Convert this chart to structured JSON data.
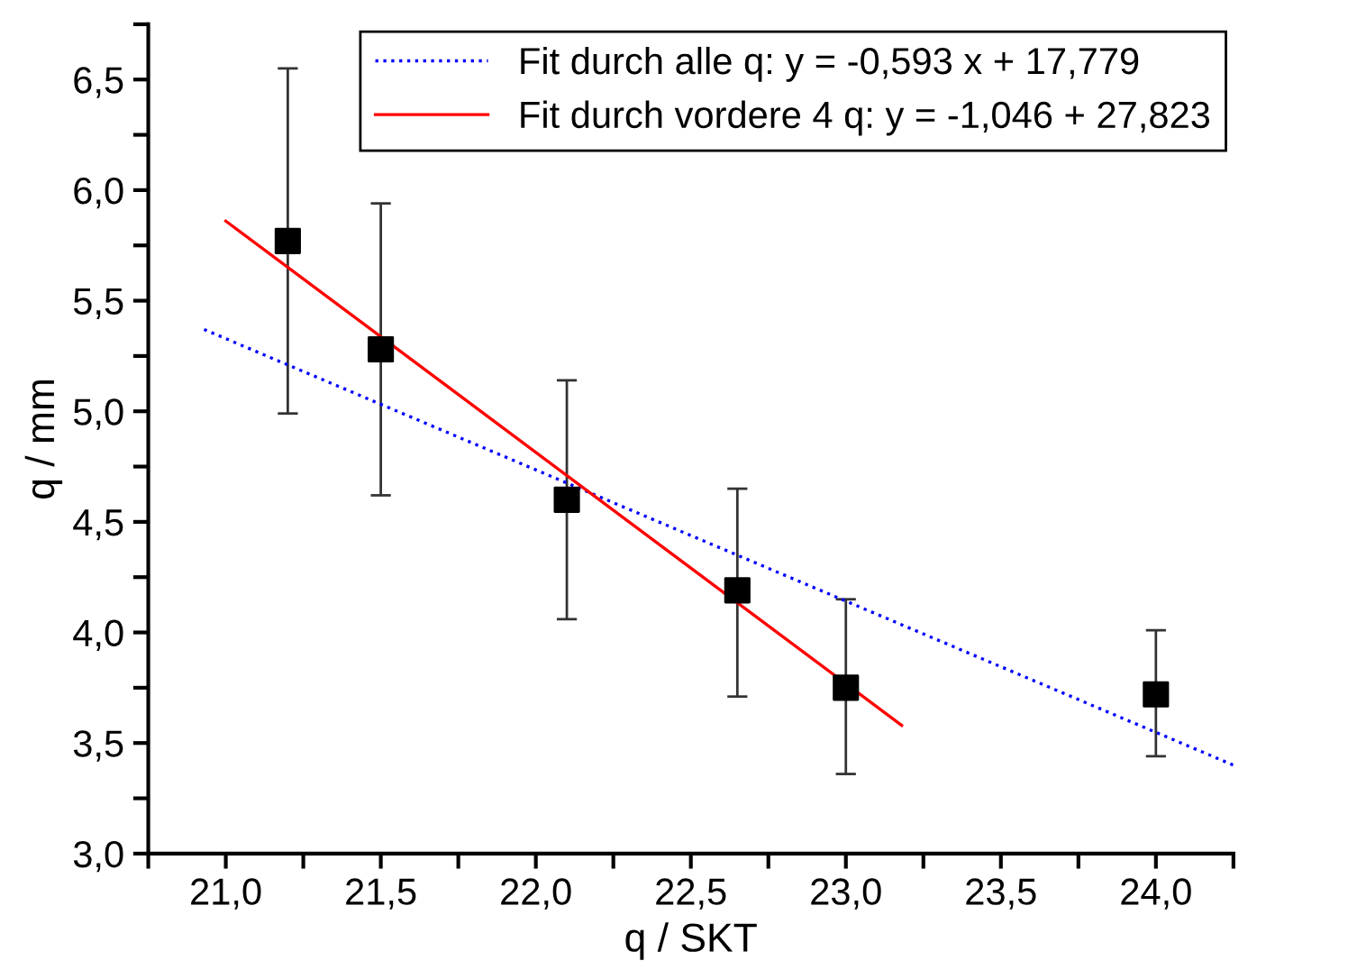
{
  "chart_data": {
    "type": "scatter",
    "xlabel": "q / SKT",
    "ylabel": "q / mm",
    "xlim": [
      20.75,
      24.25
    ],
    "ylim": [
      3.0,
      6.75
    ],
    "xticks": [
      {
        "value": 20.75,
        "label": null
      },
      {
        "value": 21.0,
        "label": "21,0"
      },
      {
        "value": 21.25,
        "label": null
      },
      {
        "value": 21.5,
        "label": "21,5"
      },
      {
        "value": 21.75,
        "label": null
      },
      {
        "value": 22.0,
        "label": "22,0"
      },
      {
        "value": 22.25,
        "label": null
      },
      {
        "value": 22.5,
        "label": "22,5"
      },
      {
        "value": 22.75,
        "label": null
      },
      {
        "value": 23.0,
        "label": "23,0"
      },
      {
        "value": 23.25,
        "label": null
      },
      {
        "value": 23.5,
        "label": "23,5"
      },
      {
        "value": 23.75,
        "label": null
      },
      {
        "value": 24.0,
        "label": "24,0"
      },
      {
        "value": 24.25,
        "label": null
      }
    ],
    "yticks": [
      {
        "value": 3.0,
        "label": "3,0"
      },
      {
        "value": 3.25,
        "label": null
      },
      {
        "value": 3.5,
        "label": "3,5"
      },
      {
        "value": 3.75,
        "label": null
      },
      {
        "value": 4.0,
        "label": "4,0"
      },
      {
        "value": 4.25,
        "label": null
      },
      {
        "value": 4.5,
        "label": "4,5"
      },
      {
        "value": 4.75,
        "label": null
      },
      {
        "value": 5.0,
        "label": "5,0"
      },
      {
        "value": 5.25,
        "label": null
      },
      {
        "value": 5.5,
        "label": "5,5"
      },
      {
        "value": 5.75,
        "label": null
      },
      {
        "value": 6.0,
        "label": "6,0"
      },
      {
        "value": 6.25,
        "label": null
      },
      {
        "value": 6.5,
        "label": "6,5"
      },
      {
        "value": 6.75,
        "label": null
      }
    ],
    "grid": false,
    "legend": "top right",
    "series": [
      {
        "color": "#000000",
        "marker": "square",
        "x": [
          21.2,
          21.5,
          22.1,
          22.65,
          23.0,
          24.0
        ],
        "values": [
          5.77,
          5.28,
          4.6,
          4.19,
          3.75,
          3.72
        ],
        "errors": [
          [
            4.99,
            6.55
          ],
          [
            4.62,
            5.94
          ],
          [
            4.06,
            5.14
          ],
          [
            3.71,
            4.65
          ],
          [
            3.36,
            4.15
          ],
          [
            3.44,
            4.01
          ]
        ]
      },
      {
        "type": "line",
        "name": "Fit durch alle q: y = -0,593 x + 17,779",
        "color": "#0000ff",
        "line_style": "dotted",
        "x": [
          20.93,
          24.25
        ],
        "values": [
          5.37,
          3.4
        ]
      },
      {
        "type": "line",
        "name": "Fit durch vordere 4 q: y = -1,046 + 27,823",
        "color": "#ff0000",
        "line_style": "solid",
        "x": [
          21.0,
          23.18
        ],
        "values": [
          5.86,
          3.58
        ]
      }
    ]
  }
}
